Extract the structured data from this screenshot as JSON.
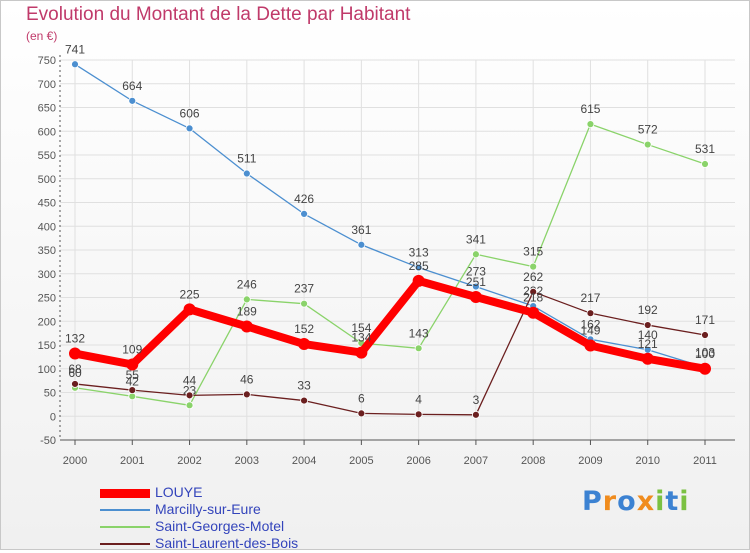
{
  "chart_data": {
    "type": "line",
    "title": "Evolution du Montant de la Dette par Habitant",
    "unit_label": "(en €)",
    "x": [
      "2000",
      "2001",
      "2002",
      "2003",
      "2004",
      "2005",
      "2006",
      "2007",
      "2008",
      "2009",
      "2010",
      "2011"
    ],
    "ylim": [
      -50,
      750
    ],
    "yticks": [
      -50,
      0,
      50,
      100,
      150,
      200,
      250,
      300,
      350,
      400,
      450,
      500,
      550,
      600,
      650,
      700,
      750
    ],
    "grid": true,
    "legend_position": "bottom-left",
    "series": [
      {
        "name": "LOUYE",
        "color": "#ff0000",
        "values": [
          132,
          109,
          225,
          189,
          152,
          134,
          285,
          251,
          218,
          149,
          121,
          100
        ]
      },
      {
        "name": "Marcilly-sur-Eure",
        "color": "#4c8fd0",
        "values": [
          741,
          664,
          606,
          511,
          426,
          361,
          313,
          273,
          232,
          162,
          140,
          103
        ]
      },
      {
        "name": "Saint-Georges-Motel",
        "color": "#8ad36a",
        "values": [
          60,
          42,
          23,
          246,
          237,
          154,
          143,
          341,
          315,
          615,
          572,
          531
        ]
      },
      {
        "name": "Saint-Laurent-des-Bois",
        "color": "#6b1f1f",
        "values": [
          68,
          55,
          44,
          46,
          33,
          6,
          4,
          3,
          262,
          217,
          192,
          171
        ]
      }
    ]
  },
  "brand": {
    "text": "Proxiti",
    "letters": [
      "P",
      "r",
      "o",
      "x",
      "i",
      "t",
      "i"
    ],
    "colors": [
      "#3c82d2",
      "#f08c1e",
      "#3c82d2",
      "#f08c1e",
      "#7bc142",
      "#3c82d2",
      "#7bc142"
    ]
  },
  "colors": {
    "title": "#c03a6a",
    "axis": "#555555",
    "grid": "#e0e0e0",
    "legend_label": "#3344bb"
  }
}
